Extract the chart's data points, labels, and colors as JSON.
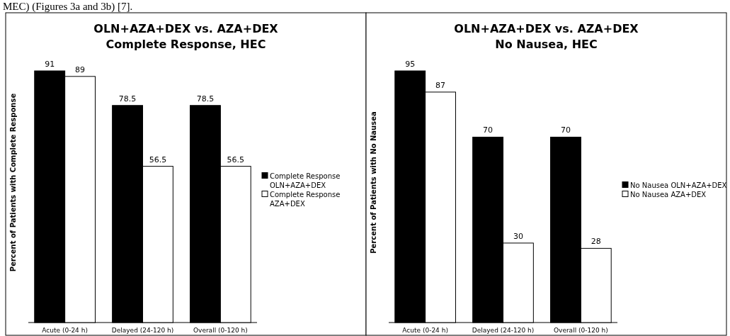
{
  "chart_data": [
    {
      "type": "bar",
      "title": "OLN+AZA+DEX vs. AZA+DEX",
      "subtitle": "Complete Response, HEC",
      "ylabel": "Percent of Patients with Complete Response",
      "categories": [
        "Acute (0-24 h)",
        "Delayed (24-120 h)",
        "Overall (0-120 h)"
      ],
      "series": [
        {
          "name": "Complete Response OLN+AZA+DEX",
          "color": "#000000",
          "values": [
            91,
            78.5,
            78.5
          ]
        },
        {
          "name": "Complete Response AZA+DEX",
          "color": "#ffffff",
          "values": [
            89,
            56.5,
            56.5
          ]
        }
      ],
      "data_labels": true,
      "legend": "right",
      "annotations": [
        "MEC) (Figures 3a and 3b) [7]."
      ]
    },
    {
      "type": "bar",
      "title": "OLN+AZA+DEX vs. AZA+DEX",
      "subtitle": "No Nausea, HEC",
      "ylabel": "Percent of Patients with No Nausea",
      "categories": [
        "Acute (0-24 h)",
        "Delayed (24-120 h)",
        "Overall (0-120 h)"
      ],
      "series": [
        {
          "name": "No Nausea OLN+AZA+DEX",
          "color": "#000000",
          "values": [
            95,
            70,
            70
          ]
        },
        {
          "name": "No Nausea AZA+DEX",
          "color": "#ffffff",
          "values": [
            87,
            30,
            28
          ]
        }
      ],
      "data_labels": true,
      "legend": "right"
    }
  ]
}
